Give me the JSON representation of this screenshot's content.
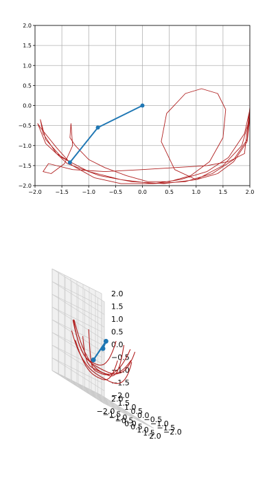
{
  "colors": {
    "trajectory": "#b01e1e",
    "pendulum": "#1f77b4",
    "grid": "#b0b0b0",
    "pane": "#f2f2f2"
  },
  "chart_data": [
    {
      "type": "line",
      "title": "",
      "xlabel": "",
      "ylabel": "",
      "xlim": [
        -2.0,
        2.0
      ],
      "ylim": [
        -2.0,
        2.0
      ],
      "grid": true,
      "xticks": [
        "−2.0",
        "−1.5",
        "−1.0",
        "−0.5",
        "0.0",
        "0.5",
        "1.0",
        "1.5",
        "2.0"
      ],
      "yticks": [
        "−2.0",
        "−1.5",
        "−1.0",
        "−0.5",
        "0.0",
        "0.5",
        "1.0",
        "1.5",
        "2.0"
      ],
      "series": [
        {
          "role": "trajectory",
          "x": [
            -1.35,
            -1.6,
            -1.85,
            -1.9,
            -1.8,
            -1.5,
            -1.0,
            -0.4,
            0.2,
            0.8,
            1.3,
            1.7,
            1.95,
            2.0,
            1.9,
            1.6,
            1.2,
            0.7,
            0.2,
            -0.4,
            -0.9,
            -1.3,
            -1.6,
            -1.9,
            -1.95,
            -1.8,
            -1.4,
            -0.8,
            -0.2,
            0.4,
            1.0,
            1.5,
            1.85,
            2.0,
            1.95,
            1.7,
            1.4,
            1.0,
            0.6,
            0.35,
            0.45,
            0.8,
            1.1,
            1.4,
            1.55,
            1.5,
            1.25,
            0.9,
            0.5,
            0.1,
            -0.3,
            -0.7,
            -1.0,
            -1.25,
            -1.35,
            -1.33,
            -1.3,
            -1.45,
            -1.7,
            -1.85,
            -1.75,
            -1.3,
            -0.7,
            0.0,
            0.6,
            1.2,
            1.6,
            1.9,
            2.0
          ],
          "y": [
            -1.4,
            -1.2,
            -0.7,
            -0.35,
            -0.85,
            -1.3,
            -1.65,
            -1.85,
            -1.95,
            -1.9,
            -1.7,
            -1.35,
            -0.85,
            -0.1,
            -0.7,
            -1.3,
            -1.65,
            -1.85,
            -1.95,
            -1.95,
            -1.8,
            -1.5,
            -1.05,
            -0.55,
            -0.45,
            -0.95,
            -1.45,
            -1.75,
            -1.9,
            -1.95,
            -1.85,
            -1.5,
            -1.0,
            -0.3,
            -0.9,
            -1.4,
            -1.7,
            -1.85,
            -1.6,
            -0.9,
            -0.2,
            0.3,
            0.42,
            0.3,
            -0.1,
            -0.8,
            -1.4,
            -1.75,
            -1.9,
            -1.9,
            -1.75,
            -1.55,
            -1.35,
            -1.0,
            -0.8,
            -0.45,
            -1.0,
            -1.45,
            -1.7,
            -1.65,
            -1.45,
            -1.6,
            -1.65,
            -1.6,
            -1.55,
            -1.5,
            -1.4,
            -1.2,
            -0.05
          ]
        },
        {
          "role": "pendulum",
          "x": [
            0.0,
            -0.83,
            -1.35
          ],
          "y": [
            0.0,
            -0.55,
            -1.42
          ]
        }
      ]
    },
    {
      "type": "line",
      "title": "",
      "projection": "3d",
      "xlim": [
        -2.0,
        2.0
      ],
      "ylim": [
        -2.0,
        2.0
      ],
      "zlim": [
        -2.0,
        2.0
      ],
      "grid": true,
      "xticks": [
        "−2.0",
        "−1.5",
        "−1.0",
        "−0.5",
        "0.0",
        "0.5",
        "1.0",
        "1.5",
        "2.0"
      ],
      "yticks": [
        "−2.0",
        "−1.5",
        "−1.0",
        "−0.5",
        "0.0",
        "0.5",
        "1.0",
        "1.5",
        "2.0"
      ],
      "zticks": [
        "−2.0",
        "−1.5",
        "−1.0",
        "−0.5",
        "0.0",
        "0.5",
        "1.0",
        "1.5",
        "2.0"
      ],
      "series": [
        {
          "role": "pendulum",
          "x": [
            0.0,
            -0.6,
            -1.3
          ],
          "y": [
            0.0,
            -0.8,
            -0.5
          ],
          "z": [
            0.0,
            0.4,
            -0.6
          ]
        }
      ]
    }
  ]
}
